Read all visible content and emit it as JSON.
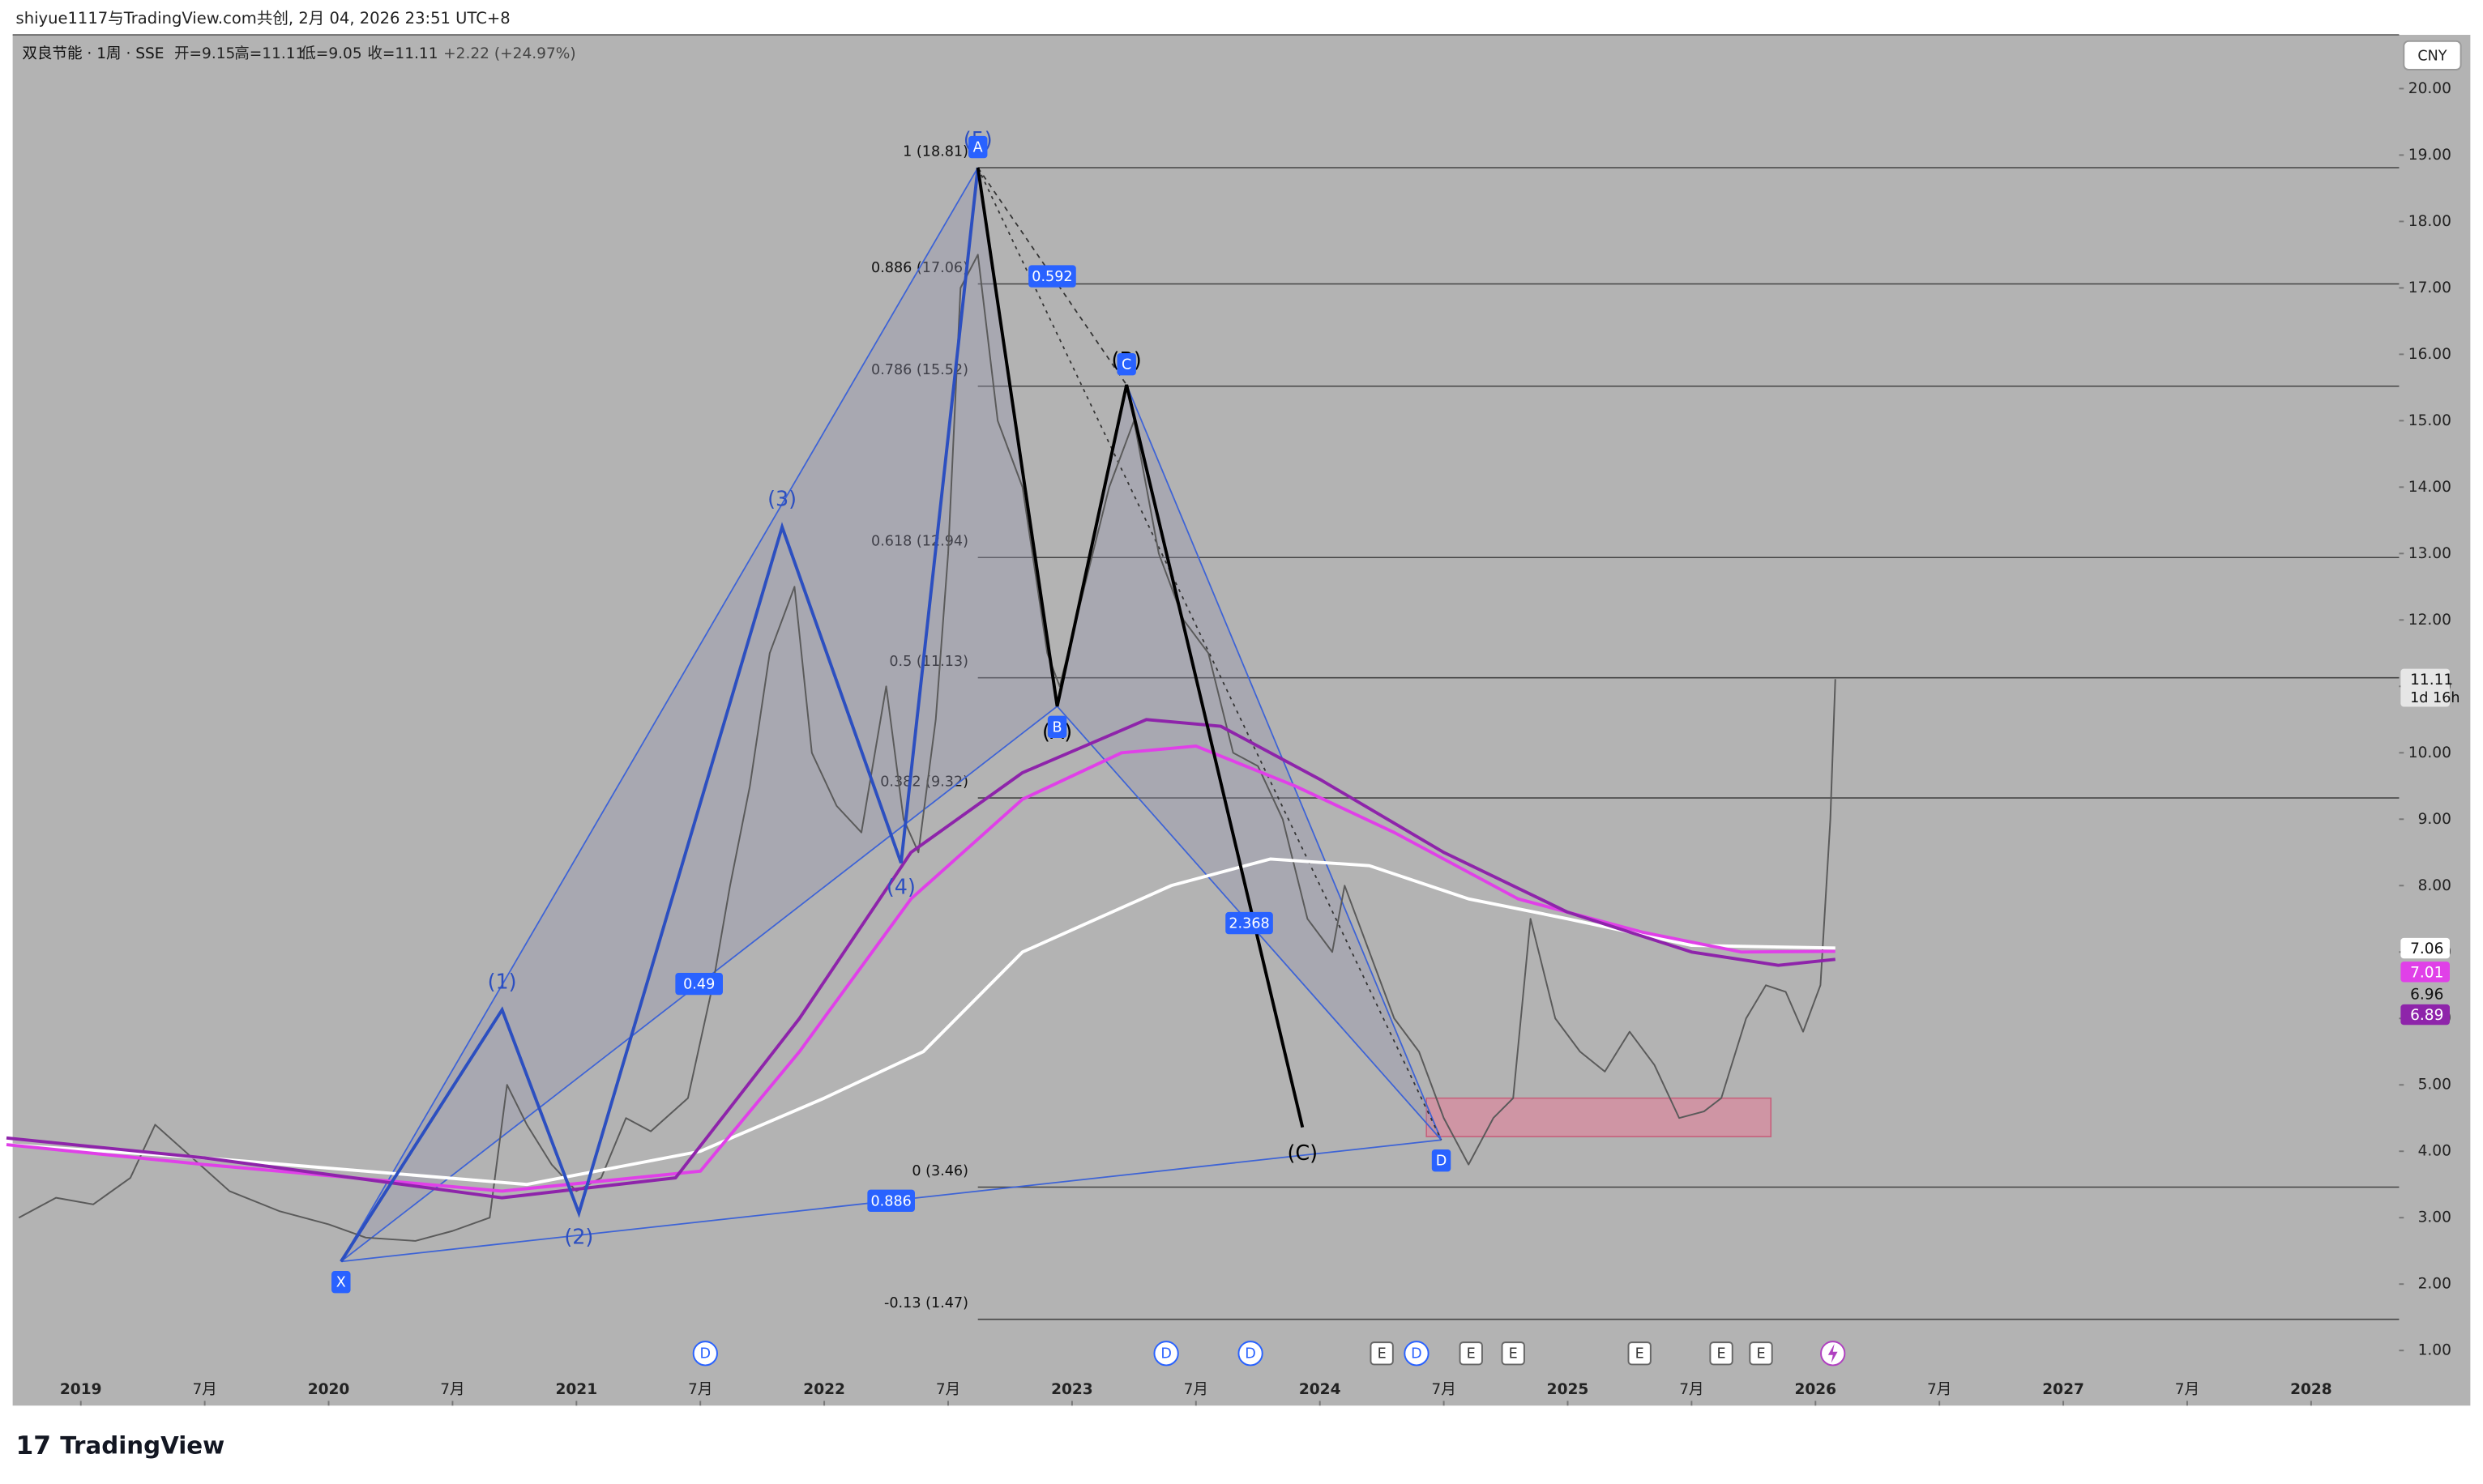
{
  "header": {
    "attribution": "shiyue1117与TradingView.com共创, 2月 04, 2026 23:51 UTC+8",
    "ohlc": [
      "开=9.15",
      "高=11.11",
      "低=9.05",
      "收=11.11"
    ],
    "change": "+2.22 (+24.97%)",
    "currency": "CNY",
    "countdown": "1d 16h",
    "brand": "TradingView"
  },
  "chart_data": {
    "type": "line",
    "xlim": [
      2018.725,
      2028.355
    ],
    "ylim": [
      0.17,
      20.81
    ],
    "xticks": [
      {
        "value": 2019,
        "label": "2019"
      },
      {
        "value": 2019.5,
        "label": "7月"
      },
      {
        "value": 2020,
        "label": "2020"
      },
      {
        "value": 2020.5,
        "label": "7月"
      },
      {
        "value": 2021,
        "label": "2021"
      },
      {
        "value": 2021.5,
        "label": "7月"
      },
      {
        "value": 2022,
        "label": "2022"
      },
      {
        "value": 2022.5,
        "label": "7月"
      },
      {
        "value": 2023,
        "label": "2023"
      },
      {
        "value": 2023.5,
        "label": "7月"
      },
      {
        "value": 2024,
        "label": "2024"
      },
      {
        "value": 2024.5,
        "label": "7月"
      },
      {
        "value": 2025,
        "label": "2025"
      },
      {
        "value": 2025.5,
        "label": "7月"
      },
      {
        "value": 2026,
        "label": "2026"
      },
      {
        "value": 2026.5,
        "label": "7月"
      },
      {
        "value": 2027,
        "label": "2027"
      },
      {
        "value": 2027.5,
        "label": "7月"
      },
      {
        "value": 2028,
        "label": "2028"
      }
    ],
    "yticks": [
      {
        "value": 1,
        "label": "1.00"
      },
      {
        "value": 2,
        "label": "2.00"
      },
      {
        "value": 3,
        "label": "3.00"
      },
      {
        "value": 4,
        "label": "4.00"
      },
      {
        "value": 5,
        "label": "5.00"
      },
      {
        "value": 6,
        "label": "6.00"
      },
      {
        "value": 7,
        "label": "7.00"
      },
      {
        "value": 8,
        "label": "8.00"
      },
      {
        "value": 9,
        "label": "9.00"
      },
      {
        "value": 10,
        "label": "10.00"
      },
      {
        "value": 11,
        "label": "11.00"
      },
      {
        "value": 12,
        "label": "12.00"
      },
      {
        "value": 13,
        "label": "13.00"
      },
      {
        "value": 14,
        "label": "14.00"
      },
      {
        "value": 15,
        "label": "15.00"
      },
      {
        "value": 16,
        "label": "16.00"
      },
      {
        "value": 17,
        "label": "17.00"
      },
      {
        "value": 18,
        "label": "18.00"
      },
      {
        "value": 19,
        "label": "19.00"
      },
      {
        "value": 20,
        "label": "20.00"
      }
    ],
    "series": [
      {
        "name": "双良节能 · 1周 · SSE",
        "color": "#5a5a5a",
        "x": [
          2018.75,
          2018.9,
          2019.05,
          2019.2,
          2019.3,
          2019.45,
          2019.6,
          2019.8,
          2020.0,
          2020.15,
          2020.35,
          2020.5,
          2020.65,
          2020.72,
          2020.8,
          2020.9,
          2021.0,
          2021.1,
          2021.2,
          2021.3,
          2021.45,
          2021.55,
          2021.62,
          2021.7,
          2021.78,
          2021.88,
          2021.95,
          2022.05,
          2022.15,
          2022.25,
          2022.32,
          2022.38,
          2022.45,
          2022.5,
          2022.55,
          2022.62,
          2022.7,
          2022.8,
          2022.9,
          2022.95,
          2023.05,
          2023.15,
          2023.25,
          2023.35,
          2023.45,
          2023.55,
          2023.65,
          2023.75,
          2023.85,
          2023.95,
          2024.05,
          2024.1,
          2024.2,
          2024.3,
          2024.4,
          2024.5,
          2024.6,
          2024.7,
          2024.78,
          2024.85,
          2024.95,
          2025.05,
          2025.15,
          2025.25,
          2025.35,
          2025.45,
          2025.55,
          2025.62,
          2025.72,
          2025.8,
          2025.88,
          2025.95,
          2026.02,
          2026.06,
          2026.08
        ],
        "values": [
          3.0,
          3.3,
          3.2,
          3.6,
          4.4,
          3.9,
          3.4,
          3.1,
          2.9,
          2.7,
          2.65,
          2.8,
          3.0,
          5.0,
          4.4,
          3.8,
          3.4,
          3.6,
          4.5,
          4.3,
          4.8,
          6.5,
          8.0,
          9.5,
          11.5,
          12.5,
          10.0,
          9.2,
          8.8,
          11.0,
          9.0,
          8.5,
          10.5,
          13.0,
          17.0,
          17.5,
          15.0,
          14.0,
          11.5,
          11.0,
          12.5,
          14.0,
          15.0,
          13.0,
          12.0,
          11.5,
          10.0,
          9.8,
          9.0,
          7.5,
          7.0,
          8.0,
          7.0,
          6.0,
          5.5,
          4.5,
          3.8,
          4.5,
          4.8,
          7.5,
          6.0,
          5.5,
          5.2,
          5.8,
          5.3,
          4.5,
          4.6,
          4.8,
          6.0,
          6.5,
          6.4,
          5.8,
          6.5,
          9.0,
          11.11
        ]
      },
      {
        "color": "#ffffff",
        "x": [
          2018.7,
          2019.5,
          2020.8,
          2021.5,
          2022.0,
          2022.4,
          2022.8,
          2023.4,
          2023.8,
          2024.2,
          2024.6,
          2025.0,
          2025.5,
          2026.08
        ],
        "values": [
          4.1,
          3.9,
          3.5,
          4.0,
          4.8,
          5.5,
          7.0,
          8.0,
          8.4,
          8.3,
          7.8,
          7.5,
          7.1,
          7.06
        ]
      },
      {
        "color": "#e040e8",
        "x": [
          2018.7,
          2019.5,
          2020.7,
          2021.5,
          2021.9,
          2022.35,
          2022.8,
          2023.2,
          2023.5,
          2023.9,
          2024.3,
          2024.8,
          2025.3,
          2025.7,
          2026.08
        ],
        "values": [
          4.1,
          3.8,
          3.4,
          3.7,
          5.5,
          7.8,
          9.3,
          10.0,
          10.1,
          9.5,
          8.8,
          7.8,
          7.3,
          7.0,
          7.01
        ]
      },
      {
        "color": "#8e24aa",
        "x": [
          2018.7,
          2019.5,
          2020.7,
          2021.4,
          2021.9,
          2022.35,
          2022.8,
          2023.3,
          2023.6,
          2024.0,
          2024.5,
          2025.0,
          2025.5,
          2025.85,
          2026.08
        ],
        "values": [
          4.2,
          3.9,
          3.3,
          3.6,
          6.0,
          8.5,
          9.7,
          10.5,
          10.4,
          9.6,
          8.5,
          7.6,
          7.0,
          6.8,
          6.89
        ]
      }
    ],
    "price_tags": [
      {
        "value": 11.11,
        "color": "#e6e6e6"
      },
      {
        "value": 7.06,
        "color": "#ffffff"
      },
      {
        "value": 7.01,
        "color": "#e040e8"
      },
      {
        "value": 6.96
      },
      {
        "value": 6.89,
        "color": "#8e24aa"
      }
    ]
  },
  "fib_levels": [
    {
      "label": "1 (18.81)",
      "price": 18.81
    },
    {
      "label": "0.886 (17.06)",
      "price": 17.06
    },
    {
      "label": "0.786 (15.52)",
      "price": 15.52
    },
    {
      "label": "0.618 (12.94)",
      "price": 12.94
    },
    {
      "label": "0.5 (11.13)",
      "price": 11.13
    },
    {
      "label": "0.382 (9.32)",
      "price": 9.32
    },
    {
      "label": "0 (3.46)",
      "price": 3.46
    },
    {
      "label": "-0.13 (1.47)",
      "price": 1.47
    }
  ],
  "pattern": {
    "points": [
      {
        "label": "X",
        "x": 2020.05,
        "price": 2.34
      },
      {
        "label": "A",
        "x": 2022.62,
        "price": 18.81
      },
      {
        "label": "B",
        "x": 2022.94,
        "price": 10.7
      },
      {
        "label": "C",
        "x": 2023.22,
        "price": 15.54
      },
      {
        "label": "D",
        "x": 2024.49,
        "price": 4.17
      }
    ],
    "ratios": [
      0.49,
      0.592,
      2.368,
      0.886
    ]
  },
  "elliott": [
    {
      "label": "(1)",
      "x": 2020.7,
      "price": 6.13
    },
    {
      "label": "(2)",
      "x": 2021.01,
      "price": 3.07
    },
    {
      "label": "(3)",
      "x": 2021.83,
      "price": 13.4
    },
    {
      "label": "(4)",
      "x": 2022.31,
      "price": 8.34
    },
    {
      "label": "(5)",
      "x": 2022.62,
      "price": 18.81
    }
  ],
  "correction": [
    {
      "label": "(A)",
      "x": 2022.94,
      "price": 10.7
    },
    {
      "label": "(B)",
      "x": 2023.22,
      "price": 15.54
    },
    {
      "label": "(C)",
      "x": 2023.93,
      "price": 4.36
    }
  ],
  "zone": {
    "x": [
      2024.43,
      2025.82
    ],
    "price": [
      4.22,
      4.8
    ]
  },
  "events": [
    {
      "label": "D",
      "x": 2021.52
    },
    {
      "label": "D",
      "x": 2023.38
    },
    {
      "label": "D",
      "x": 2023.72
    },
    {
      "label": "E",
      "x": 2024.25
    },
    {
      "label": "D",
      "x": 2024.39
    },
    {
      "label": "E",
      "x": 2024.61
    },
    {
      "label": "E",
      "x": 2024.78
    },
    {
      "label": "E",
      "x": 2025.29
    },
    {
      "label": "E",
      "x": 2025.62
    },
    {
      "label": "E",
      "x": 2025.78
    }
  ]
}
